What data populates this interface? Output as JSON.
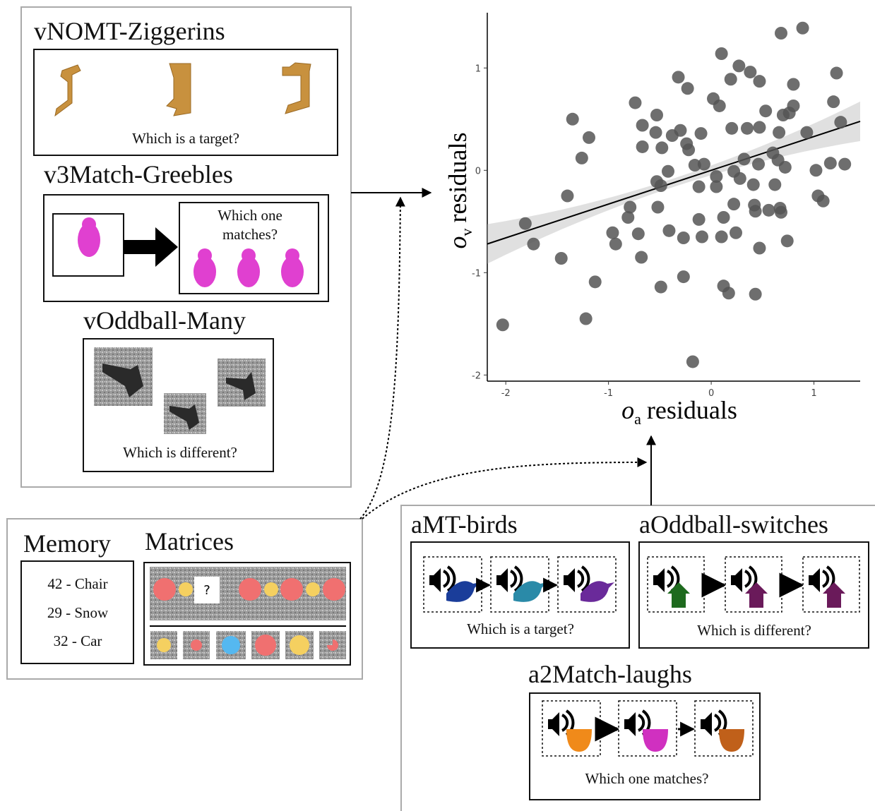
{
  "panels": {
    "visual": {
      "tasks": [
        {
          "title": "vNOMT-Ziggerins",
          "prompt": "Which is a target?"
        },
        {
          "title": "v3Match-Greebles",
          "prompt_lines": [
            "Which one",
            "matches?"
          ]
        },
        {
          "title": "vOddball-Many",
          "prompt": "Which is different?"
        }
      ]
    },
    "memory": {
      "title": "Memory",
      "items": [
        "42 - Chair",
        "29 - Snow",
        "32 - Car"
      ]
    },
    "matrices": {
      "title": "Matrices",
      "question": "?"
    },
    "auditory": {
      "tasks": [
        {
          "title": "aMT-birds",
          "prompt": "Which is a target?"
        },
        {
          "title": "aOddball-switches",
          "prompt": "Which is different?"
        },
        {
          "title": "a2Match-laughs",
          "prompt": "Which one matches?"
        }
      ]
    }
  },
  "chart_data": {
    "type": "scatter",
    "x_label": {
      "symbol": "o",
      "subscript": "a",
      "text": "residuals"
    },
    "y_label": {
      "symbol": "o",
      "subscript": "v",
      "text": "residuals"
    },
    "xlim": [
      -2.18,
      1.45
    ],
    "ylim": [
      -2.06,
      1.54
    ],
    "xticks": [
      -2,
      -1,
      0,
      1
    ],
    "yticks": [
      1,
      0,
      -1,
      -2
    ],
    "color": "#555555",
    "fit_line": {
      "slope": 0.33,
      "intercept": 0.0
    },
    "x": [
      -2.03,
      -1.81,
      -1.73,
      -1.46,
      -1.35,
      -1.26,
      -1.19,
      -1.22,
      -1.13,
      -1.4,
      -0.96,
      -0.93,
      -0.81,
      -0.79,
      -0.74,
      -0.71,
      -0.68,
      -0.67,
      -0.67,
      -0.53,
      -0.54,
      -0.53,
      -0.49,
      -0.52,
      -0.48,
      -0.49,
      -0.42,
      -0.41,
      -0.38,
      -0.32,
      -0.3,
      -0.27,
      -0.27,
      -0.24,
      -0.23,
      -0.22,
      -0.18,
      -0.12,
      -0.09,
      -0.12,
      -0.1,
      -0.16,
      -0.07,
      0.02,
      0.05,
      0.05,
      0.08,
      0.1,
      0.1,
      0.12,
      0.12,
      0.17,
      0.19,
      0.2,
      0.22,
      0.22,
      0.24,
      0.27,
      0.28,
      0.32,
      0.35,
      0.38,
      0.41,
      0.42,
      0.43,
      0.43,
      0.46,
      0.47,
      0.47,
      0.47,
      0.53,
      0.56,
      0.6,
      0.62,
      0.65,
      0.66,
      0.67,
      0.68,
      0.68,
      0.7,
      0.72,
      0.74,
      0.76,
      0.8,
      0.8,
      0.89,
      0.93,
      1.02,
      1.04,
      1.09,
      1.16,
      1.19,
      1.22,
      1.26,
      1.3
    ],
    "y": [
      -1.51,
      -0.52,
      -0.72,
      -0.86,
      0.5,
      0.12,
      0.32,
      -1.45,
      -1.09,
      -0.25,
      -0.61,
      -0.72,
      -0.46,
      -0.36,
      0.66,
      -0.62,
      -0.85,
      0.44,
      0.23,
      0.54,
      0.37,
      -0.11,
      -0.15,
      -0.36,
      0.22,
      -1.14,
      -0.01,
      -0.59,
      0.34,
      0.91,
      0.39,
      -0.66,
      -1.04,
      0.26,
      0.8,
      0.2,
      -1.87,
      -0.48,
      -0.65,
      -0.16,
      0.36,
      0.05,
      0.06,
      0.7,
      -0.06,
      -0.16,
      0.63,
      1.14,
      -0.65,
      -0.46,
      -1.13,
      -1.2,
      0.89,
      0.41,
      -0.01,
      -0.33,
      -0.61,
      1.02,
      -0.08,
      0.11,
      0.41,
      0.96,
      -0.14,
      -0.34,
      -0.4,
      -1.21,
      0.06,
      0.42,
      0.87,
      -0.76,
      0.58,
      -0.39,
      0.17,
      -0.14,
      0.1,
      0.37,
      -0.37,
      -0.41,
      1.34,
      0.54,
      0.03,
      -0.69,
      0.56,
      0.63,
      0.84,
      1.39,
      0.37,
      0.0,
      -0.25,
      -0.3,
      0.07,
      0.67,
      0.95,
      0.47,
      0.06
    ]
  }
}
